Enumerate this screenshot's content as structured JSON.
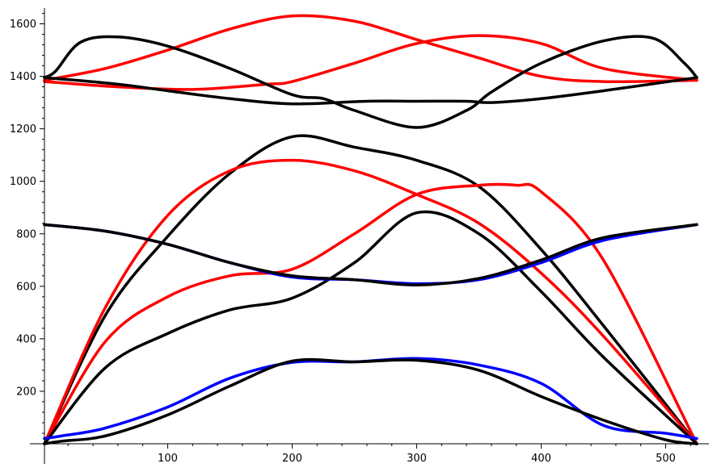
{
  "chart_data": {
    "type": "line",
    "title": "",
    "xlabel": "",
    "ylabel": "",
    "xlim": [
      1,
      525
    ],
    "ylim": [
      0,
      1660
    ],
    "x_ticks": [
      100,
      200,
      300,
      400,
      500
    ],
    "y_ticks": [
      200,
      400,
      600,
      800,
      1000,
      1200,
      1400,
      1600
    ],
    "x_tick_labels": [
      "100",
      "200",
      "300",
      "400",
      "500"
    ],
    "y_tick_labels": [
      "200",
      "400",
      "600",
      "800",
      "1000",
      "1200",
      "1400",
      "1600"
    ],
    "grid": false,
    "legend": "none",
    "colors": {
      "black": "#000000",
      "red": "#ff0000",
      "blue": "#0000ff"
    },
    "series": [
      {
        "color": "#ff0000",
        "x": [
          1,
          50,
          100,
          150,
          200,
          250,
          300,
          350,
          400,
          450,
          525
        ],
        "y": [
          1385,
          1430,
          1500,
          1580,
          1630,
          1610,
          1540,
          1470,
          1400,
          1380,
          1385
        ]
      },
      {
        "color": "#ff0000",
        "x": [
          1,
          60,
          120,
          180,
          200,
          250,
          300,
          350,
          400,
          450,
          525
        ],
        "y": [
          1380,
          1360,
          1350,
          1370,
          1380,
          1450,
          1525,
          1555,
          1525,
          1430,
          1385
        ]
      },
      {
        "color": "#000000",
        "x": [
          1,
          10,
          30,
          60,
          100,
          150,
          200,
          225,
          250,
          300,
          340,
          360,
          400,
          450,
          490,
          515,
          525
        ],
        "y": [
          1395,
          1420,
          1530,
          1550,
          1515,
          1430,
          1330,
          1315,
          1270,
          1205,
          1270,
          1340,
          1450,
          1535,
          1545,
          1450,
          1395
        ]
      },
      {
        "color": "#000000",
        "x": [
          1,
          60,
          100,
          150,
          200,
          260,
          300,
          340,
          360,
          400,
          450,
          525
        ],
        "y": [
          1395,
          1370,
          1345,
          1315,
          1295,
          1305,
          1305,
          1305,
          1300,
          1315,
          1345,
          1395
        ]
      },
      {
        "color": "#000000",
        "x": [
          1,
          50,
          100,
          150,
          200,
          250,
          300,
          350,
          400,
          450,
          525
        ],
        "y": [
          0,
          490,
          790,
          1030,
          1170,
          1130,
          1080,
          980,
          740,
          450,
          0
        ]
      },
      {
        "color": "#ff0000",
        "x": [
          1,
          50,
          100,
          150,
          200,
          250,
          300,
          350,
          400,
          450,
          525
        ],
        "y": [
          0,
          520,
          870,
          1040,
          1080,
          1040,
          950,
          840,
          650,
          410,
          0
        ]
      },
      {
        "color": "#ff0000",
        "x": [
          1,
          50,
          100,
          150,
          200,
          250,
          300,
          350,
          380,
          400,
          450,
          525
        ],
        "y": [
          0,
          390,
          560,
          640,
          665,
          800,
          950,
          985,
          985,
          960,
          700,
          0
        ]
      },
      {
        "color": "#000000",
        "x": [
          1,
          50,
          100,
          150,
          200,
          250,
          300,
          350,
          400,
          450,
          525
        ],
        "y": [
          0,
          290,
          420,
          510,
          555,
          690,
          880,
          800,
          580,
          330,
          0
        ]
      },
      {
        "color": "#0000ff",
        "x": [
          1,
          50,
          100,
          150,
          200,
          250,
          300,
          350,
          400,
          450,
          525
        ],
        "y": [
          835,
          810,
          760,
          690,
          635,
          625,
          610,
          625,
          690,
          775,
          835
        ]
      },
      {
        "color": "#000000",
        "x": [
          1,
          50,
          100,
          150,
          200,
          250,
          300,
          350,
          400,
          450,
          525
        ],
        "y": [
          835,
          810,
          760,
          690,
          640,
          625,
          605,
          630,
          700,
          785,
          835
        ]
      },
      {
        "color": "#0000ff",
        "x": [
          1,
          15,
          50,
          100,
          150,
          200,
          250,
          300,
          350,
          400,
          450,
          500,
          525
        ],
        "y": [
          20,
          30,
          60,
          140,
          250,
          310,
          312,
          325,
          300,
          230,
          70,
          40,
          20
        ]
      },
      {
        "color": "#000000",
        "x": [
          1,
          15,
          50,
          100,
          150,
          200,
          250,
          300,
          350,
          400,
          450,
          500,
          525
        ],
        "y": [
          0,
          10,
          30,
          110,
          220,
          315,
          312,
          318,
          280,
          180,
          90,
          15,
          0
        ]
      }
    ]
  }
}
